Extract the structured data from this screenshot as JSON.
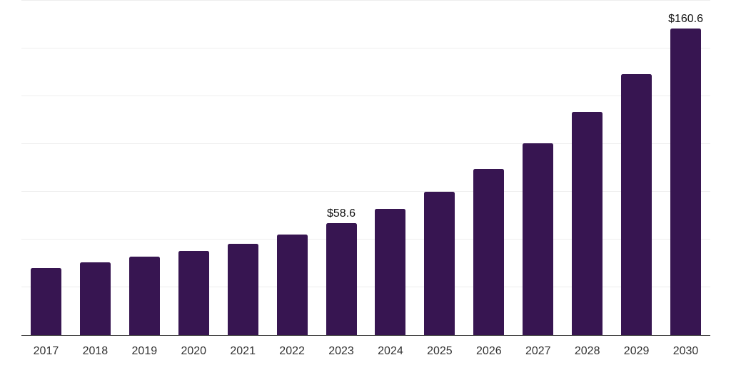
{
  "chart_data": {
    "type": "bar",
    "title": "",
    "xlabel": "",
    "ylabel": "",
    "categories": [
      "2017",
      "2018",
      "2019",
      "2020",
      "2021",
      "2022",
      "2023",
      "2024",
      "2025",
      "2026",
      "2027",
      "2028",
      "2029",
      "2030"
    ],
    "values": [
      35.0,
      38.0,
      41.0,
      44.0,
      47.7,
      52.6,
      58.6,
      66.0,
      74.9,
      86.8,
      100.4,
      116.7,
      136.4,
      160.6
    ],
    "value_labels": [
      "",
      "",
      "",
      "",
      "",
      "",
      "$58.6",
      "",
      "",
      "",
      "",
      "",
      "",
      "$160.6"
    ],
    "ylim": [
      0,
      175
    ],
    "gridline_values": [
      25,
      50,
      75,
      100,
      125,
      150,
      175
    ],
    "grid": "horizontal-only",
    "legend": "none",
    "y_axis_tick_labels": "none",
    "colors": {
      "bar": "#371551",
      "gridline": "#eeeeee",
      "axis_line": "#333333",
      "tick_label": "#333333",
      "value_label": "#111111",
      "background": "#ffffff"
    }
  }
}
